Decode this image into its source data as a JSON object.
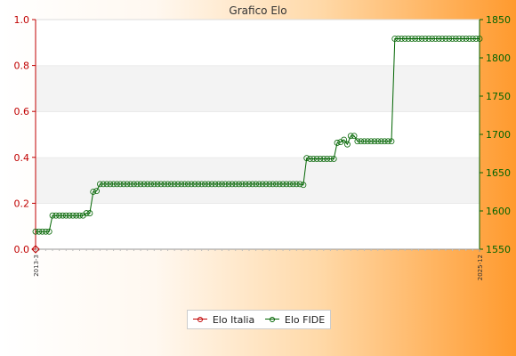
{
  "chart_data": {
    "type": "line",
    "title": "Grafico Elo",
    "colors": {
      "italia": "#c00000",
      "fide": "#006400"
    },
    "y_left": {
      "range": [
        0.0,
        1.0
      ],
      "ticks": [
        "0.0",
        "0.2",
        "0.4",
        "0.6",
        "0.8",
        "1.0"
      ]
    },
    "y_right": {
      "range": [
        1550,
        1850
      ],
      "ticks": [
        "1550",
        "1600",
        "1650",
        "1700",
        "1750",
        "1800",
        "1850"
      ]
    },
    "grid": "horizontal bands",
    "legend": {
      "placement": "bottom",
      "entries": [
        "Elo Italia",
        "Elo FIDE"
      ]
    },
    "x_tick_first": "2013-3",
    "x_tick_last": "2025-12",
    "series": [
      {
        "name": "Elo Italia",
        "axis": "left",
        "values": [
          0.0
        ]
      },
      {
        "name": "Elo FIDE",
        "axis": "right",
        "values": [
          1573,
          1573,
          1573,
          1573,
          1573,
          1594,
          1594,
          1594,
          1594,
          1594,
          1594,
          1594,
          1594,
          1594,
          1594,
          1597,
          1597,
          1625,
          1626,
          1635,
          1635,
          1635,
          1635,
          1635,
          1635,
          1635,
          1635,
          1635,
          1635,
          1635,
          1635,
          1635,
          1635,
          1635,
          1635,
          1635,
          1635,
          1635,
          1635,
          1635,
          1635,
          1635,
          1635,
          1635,
          1635,
          1635,
          1635,
          1635,
          1635,
          1635,
          1635,
          1635,
          1635,
          1635,
          1635,
          1635,
          1635,
          1635,
          1635,
          1635,
          1635,
          1635,
          1635,
          1635,
          1635,
          1635,
          1635,
          1635,
          1635,
          1635,
          1635,
          1635,
          1635,
          1635,
          1635,
          1635,
          1635,
          1635,
          1635,
          1634,
          1669,
          1668,
          1668,
          1668,
          1668,
          1668,
          1668,
          1668,
          1668,
          1689,
          1690,
          1693,
          1687,
          1698,
          1698,
          1691,
          1691,
          1691,
          1691,
          1691,
          1691,
          1691,
          1691,
          1691,
          1691,
          1691,
          1825,
          1825,
          1825,
          1825,
          1825,
          1825,
          1825,
          1825,
          1825,
          1825,
          1825,
          1825,
          1825,
          1825,
          1825,
          1825,
          1825,
          1825,
          1825,
          1825,
          1825,
          1825,
          1825,
          1825,
          1825,
          1825
        ]
      }
    ]
  }
}
